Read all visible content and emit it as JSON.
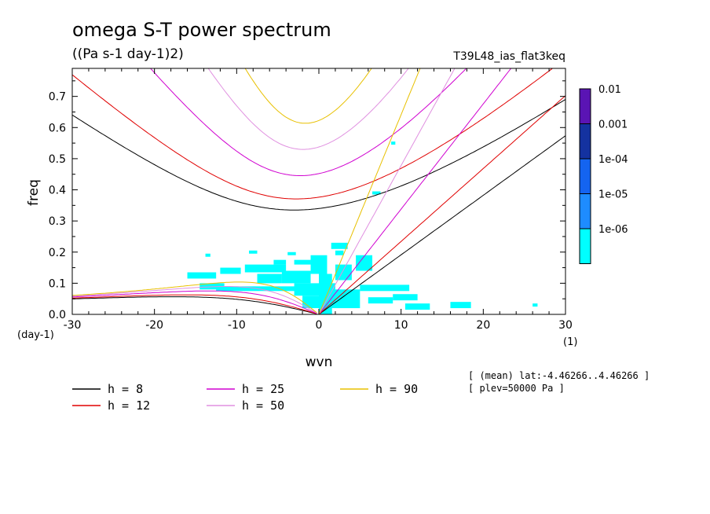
{
  "chart_data": {
    "type": "area",
    "title": "omega S-T power spectrum",
    "subtitle": "((Pa s-1 day-1)2)",
    "run_label": "T39L48_ias_flat3keq",
    "xlabel": "wvn",
    "ylabel": "freq",
    "x_unit": "(1)",
    "y_unit": "(day-1)",
    "xlim": [
      -30,
      30
    ],
    "ylim": [
      0,
      0.79
    ],
    "x_ticks": [
      "-30",
      "-20",
      "-10",
      "0",
      "10",
      "20",
      "30"
    ],
    "y_ticks": [
      "0.0",
      "0.1",
      "0.2",
      "0.3",
      "0.4",
      "0.5",
      "0.6",
      "0.7"
    ],
    "shading": {
      "levels": [
        "0.01",
        "0.001",
        "1e-04",
        "1e-05",
        "1e-06"
      ],
      "colors": [
        "#5a14b4",
        "#1432a0",
        "#1464f0",
        "#1e8cff",
        "#00ffff"
      ],
      "visible_fill": "#00ffff",
      "regions": [
        {
          "x": -14.5,
          "y": 0.08,
          "w": 3.0,
          "h": 0.02
        },
        {
          "x": -16.0,
          "y": 0.115,
          "w": 3.5,
          "h": 0.02
        },
        {
          "x": -12.0,
          "y": 0.13,
          "w": 2.5,
          "h": 0.02
        },
        {
          "x": -9.0,
          "y": 0.135,
          "w": 5.0,
          "h": 0.025
        },
        {
          "x": -7.5,
          "y": 0.1,
          "w": 3.0,
          "h": 0.03
        },
        {
          "x": -4.5,
          "y": 0.1,
          "w": 3.5,
          "h": 0.04
        },
        {
          "x": -5.5,
          "y": 0.16,
          "w": 1.5,
          "h": 0.015
        },
        {
          "x": -3.0,
          "y": 0.16,
          "w": 2.0,
          "h": 0.015
        },
        {
          "x": -1.0,
          "y": 0.13,
          "w": 2.0,
          "h": 0.06
        },
        {
          "x": -3.0,
          "y": 0.06,
          "w": 5.0,
          "h": 0.04
        },
        {
          "x": -12.5,
          "y": 0.075,
          "w": 10.0,
          "h": 0.015
        },
        {
          "x": -2.0,
          "y": 0.02,
          "w": 2.0,
          "h": 0.04
        },
        {
          "x": 0.0,
          "y": 0.0,
          "w": 1.6,
          "h": 0.13
        },
        {
          "x": 1.5,
          "y": 0.02,
          "w": 3.5,
          "h": 0.06
        },
        {
          "x": 2.0,
          "y": 0.11,
          "w": 2.0,
          "h": 0.05
        },
        {
          "x": 1.5,
          "y": 0.21,
          "w": 2.0,
          "h": 0.02
        },
        {
          "x": 2.0,
          "y": 0.19,
          "w": 1.0,
          "h": 0.015
        },
        {
          "x": 4.5,
          "y": 0.14,
          "w": 2.0,
          "h": 0.05
        },
        {
          "x": 5.0,
          "y": 0.075,
          "w": 6.0,
          "h": 0.02
        },
        {
          "x": 9.0,
          "y": 0.045,
          "w": 3.0,
          "h": 0.02
        },
        {
          "x": 10.5,
          "y": 0.015,
          "w": 3.0,
          "h": 0.02
        },
        {
          "x": 16.0,
          "y": 0.02,
          "w": 2.5,
          "h": 0.02
        },
        {
          "x": 6.0,
          "y": 0.035,
          "w": 3.0,
          "h": 0.02
        },
        {
          "x": 6.5,
          "y": 0.385,
          "w": 1.0,
          "h": 0.01
        },
        {
          "x": 8.8,
          "y": 0.545,
          "w": 0.5,
          "h": 0.01
        },
        {
          "x": -13.8,
          "y": 0.185,
          "w": 0.6,
          "h": 0.01
        },
        {
          "x": -8.5,
          "y": 0.195,
          "w": 1.0,
          "h": 0.01
        },
        {
          "x": -3.8,
          "y": 0.19,
          "w": 1.0,
          "h": 0.01
        },
        {
          "x": 26.0,
          "y": 0.025,
          "w": 0.6,
          "h": 0.01
        }
      ]
    },
    "dispersion_curves": {
      "equivalent_depths": [
        8,
        12,
        25,
        50,
        90
      ],
      "colors": {
        "8": "#000000",
        "12": "#e00000",
        "25": "#d000d0",
        "50": "#e090e0",
        "90": "#e8c000"
      }
    },
    "legend_placement": "bottom-left",
    "legend": [
      {
        "label": "h =  8",
        "color": "#000000"
      },
      {
        "label": "h = 12",
        "color": "#e00000"
      },
      {
        "label": "h = 25",
        "color": "#d000d0"
      },
      {
        "label": "h = 50",
        "color": "#e090e0"
      },
      {
        "label": "h = 90",
        "color": "#e8c000"
      }
    ],
    "annotations": [
      "[ (mean) lat:-4.46266..4.46266 ]",
      "[ plev=50000 Pa ]"
    ],
    "grid": false
  }
}
